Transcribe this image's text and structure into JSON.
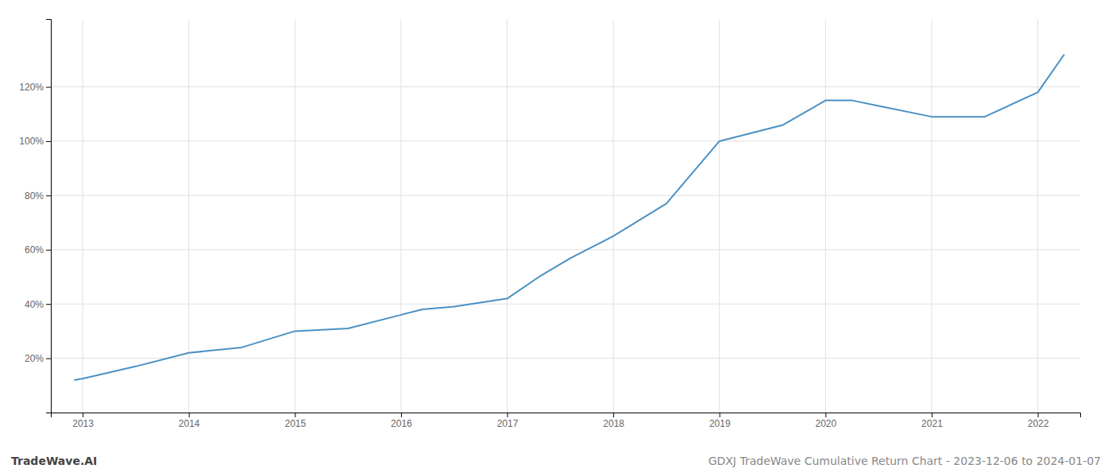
{
  "chart_data": {
    "type": "line",
    "annotations": [
      "TradeWave.AI",
      "GDXJ TradeWave Cumulative Return Chart - 2023-12-06 to 2024-01-07"
    ],
    "x": [
      2012.92,
      2013.0,
      2013.5,
      2014.0,
      2014.5,
      2015.0,
      2015.5,
      2016.0,
      2016.2,
      2016.5,
      2017.0,
      2017.3,
      2017.6,
      2018.0,
      2018.5,
      2019.0,
      2019.3,
      2019.6,
      2020.0,
      2020.25,
      2020.5,
      2021.0,
      2021.5,
      2022.0,
      2022.25
    ],
    "values": [
      12,
      12.5,
      17,
      22,
      24,
      30,
      31,
      36,
      38,
      39,
      42,
      50,
      57,
      65,
      77,
      100,
      103,
      106,
      115,
      115,
      113,
      109,
      109,
      118,
      132
    ],
    "color": "#4a90c4",
    "xlim": [
      2012.7,
      2022.4
    ],
    "ylim": [
      0,
      145
    ],
    "xticks": [
      2013,
      2014,
      2015,
      2016,
      2017,
      2018,
      2019,
      2020,
      2021,
      2022
    ],
    "yticks": [
      {
        "value": 20,
        "label": "20%"
      },
      {
        "value": 40,
        "label": "40%"
      },
      {
        "value": 60,
        "label": "60%"
      },
      {
        "value": 80,
        "label": "80%"
      },
      {
        "value": 100,
        "label": "100%"
      },
      {
        "value": 120,
        "label": "120%"
      }
    ],
    "grid": true
  }
}
